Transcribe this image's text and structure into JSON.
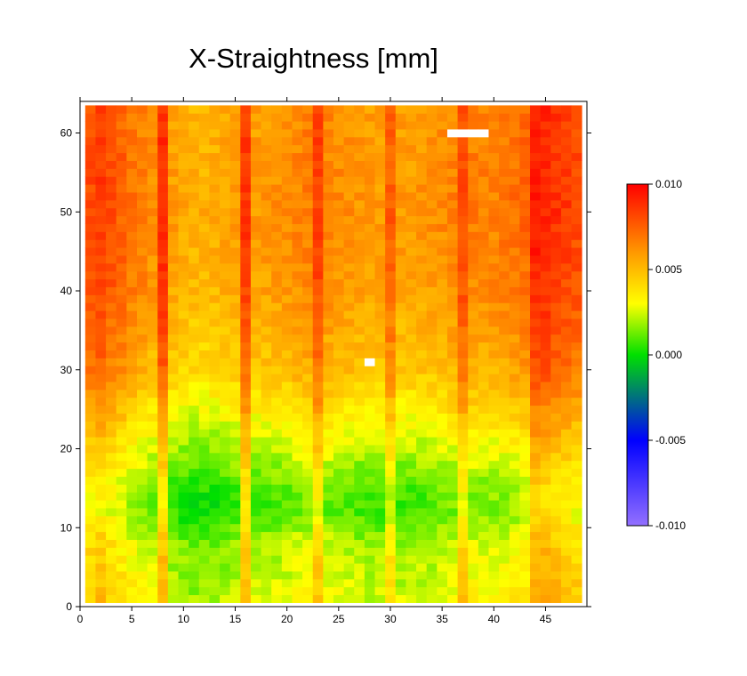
{
  "chart_data": {
    "type": "heatmap",
    "title": "X-Straightness [mm]",
    "xlabel": "",
    "ylabel": "",
    "xlim": [
      0,
      49
    ],
    "ylim": [
      0,
      64
    ],
    "x_ticks": [
      0,
      5,
      10,
      15,
      20,
      25,
      30,
      35,
      40,
      45
    ],
    "y_ticks": [
      0,
      10,
      20,
      30,
      40,
      50,
      60
    ],
    "cell_size": 1,
    "grid_x_range": [
      0.5,
      48.5
    ],
    "grid_y_range": [
      0.5,
      63.5
    ],
    "colorbar": {
      "min": -0.01,
      "max": 0.01,
      "ticks": [
        0.01,
        0.005,
        0.0,
        -0.005,
        -0.01
      ],
      "tick_labels": [
        "0.010",
        "0.005",
        "0.000",
        "-0.005",
        "-0.010"
      ],
      "stops": [
        {
          "value": -0.01,
          "color": "#9370ff"
        },
        {
          "value": -0.005,
          "color": "#0000ff"
        },
        {
          "value": 0.0,
          "color": "#00e000"
        },
        {
          "value": 0.003,
          "color": "#ffff00"
        },
        {
          "value": 0.006,
          "color": "#ff9900"
        },
        {
          "value": 0.01,
          "color": "#ff0000"
        }
      ]
    },
    "column_profile": [
      0.0068,
      0.0072,
      0.0066,
      0.0062,
      0.0057,
      0.0054,
      0.005,
      0.0075,
      0.0045,
      0.0042,
      0.004,
      0.004,
      0.0041,
      0.0043,
      0.0045,
      0.0072,
      0.0046,
      0.0047,
      0.0048,
      0.0049,
      0.0052,
      0.0054,
      0.007,
      0.0052,
      0.005,
      0.0049,
      0.0047,
      0.0046,
      0.0046,
      0.0062,
      0.0046,
      0.0046,
      0.0047,
      0.0048,
      0.005,
      0.0052,
      0.0068,
      0.0054,
      0.0053,
      0.0053,
      0.0055,
      0.0057,
      0.006,
      0.008,
      0.0078,
      0.0074,
      0.0071,
      0.0068
    ],
    "row_profile": [
      {
        "y": 1,
        "offset": -0.0022
      },
      {
        "y": 8,
        "offset": -0.0028
      },
      {
        "y": 12,
        "offset": -0.004
      },
      {
        "y": 16,
        "offset": -0.0035
      },
      {
        "y": 22,
        "offset": -0.002
      },
      {
        "y": 30,
        "offset": 0.0
      },
      {
        "y": 40,
        "offset": 0.001
      },
      {
        "y": 50,
        "offset": 0.0014
      },
      {
        "y": 63,
        "offset": 0.0012
      }
    ],
    "missing_cells": [
      {
        "x": 36,
        "y": 60
      },
      {
        "x": 37,
        "y": 60
      },
      {
        "x": 38,
        "y": 60
      },
      {
        "x": 39,
        "y": 60
      },
      {
        "x": 28,
        "y": 31
      }
    ]
  }
}
